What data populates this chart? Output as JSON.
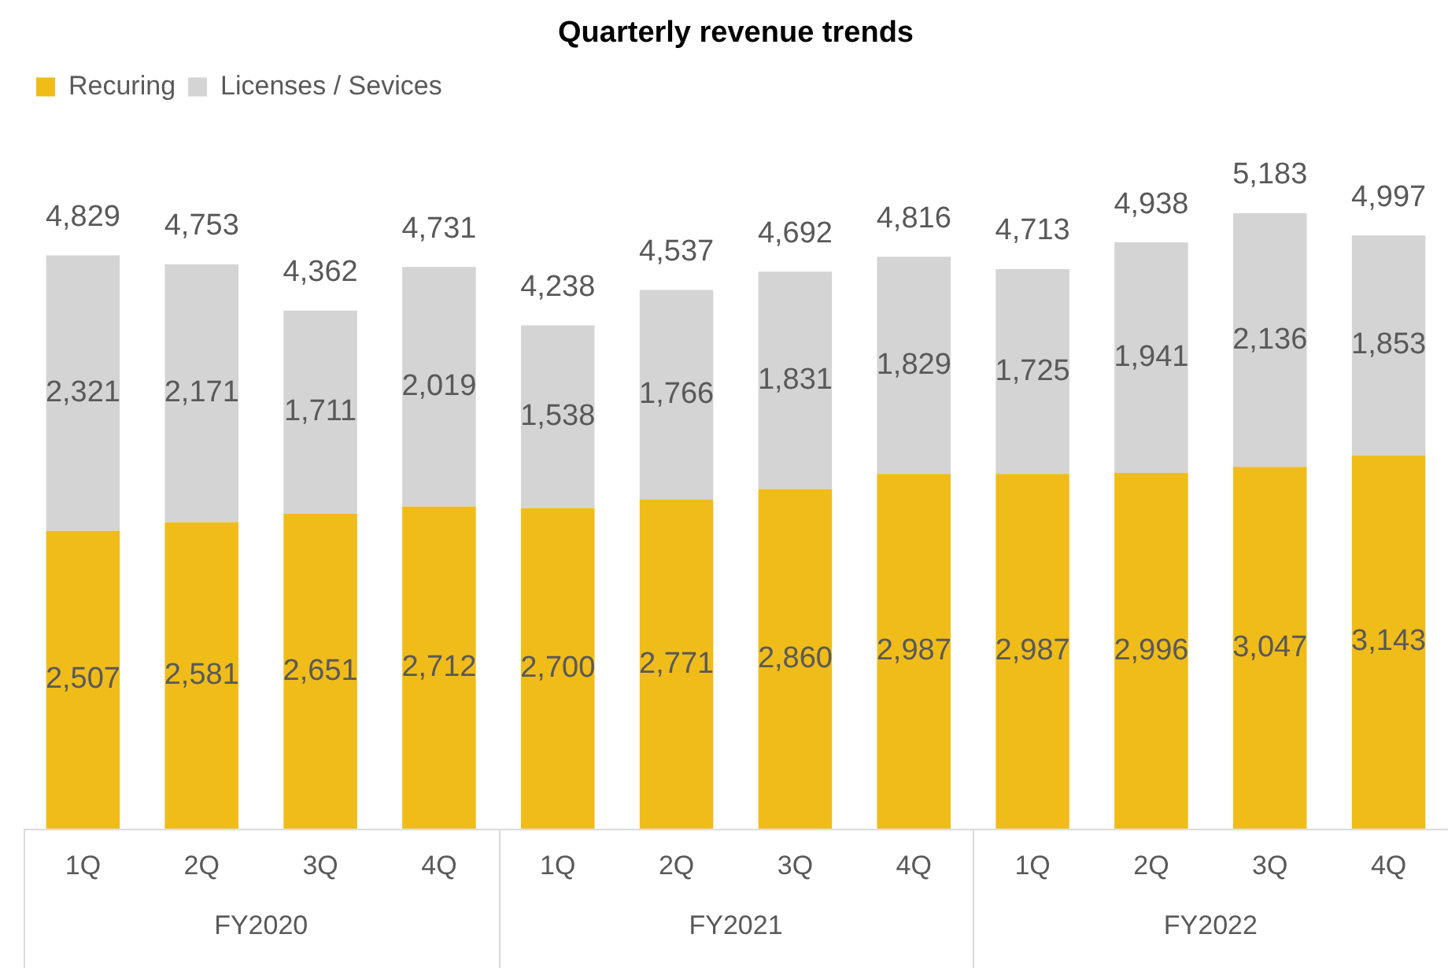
{
  "chart_data": {
    "type": "bar",
    "title": "Quarterly revenue trends",
    "stacked": true,
    "legend": "top left",
    "categories": [
      "1Q",
      "2Q",
      "3Q",
      "4Q",
      "1Q",
      "2Q",
      "3Q",
      "4Q",
      "1Q",
      "2Q",
      "3Q",
      "4Q"
    ],
    "series": [
      {
        "name": "Recuring",
        "color": "#f0bc19",
        "values": [
          2507,
          2581,
          2651,
          2712,
          2700,
          2771,
          2860,
          2987,
          2987,
          2996,
          3047,
          3143
        ],
        "value_labels": [
          "2,507",
          "2,581",
          "2,651",
          "2,712",
          "2,700",
          "2,771",
          "2,860",
          "2,987",
          "2,987",
          "2,996",
          "3,047",
          "3,143"
        ]
      },
      {
        "name": "Licenses / Sevices",
        "color": "#d4d4d4",
        "values": [
          2321,
          2171,
          1711,
          2019,
          1538,
          1766,
          1831,
          1829,
          1725,
          1941,
          2136,
          1853
        ],
        "value_labels": [
          "2,321",
          "2,171",
          "1,711",
          "2,019",
          "1,538",
          "1,766",
          "1,831",
          "1,829",
          "1,725",
          "1,941",
          "2,136",
          "1,853"
        ]
      }
    ],
    "totals": [
      "4,829",
      "4,753",
      "4,362",
      "4,731",
      "4,238",
      "4,537",
      "4,692",
      "4,816",
      "4,713",
      "4,938",
      "5,183",
      "4,997"
    ],
    "annotations": [
      "FY2020",
      "FY2021",
      "FY2022"
    ]
  }
}
